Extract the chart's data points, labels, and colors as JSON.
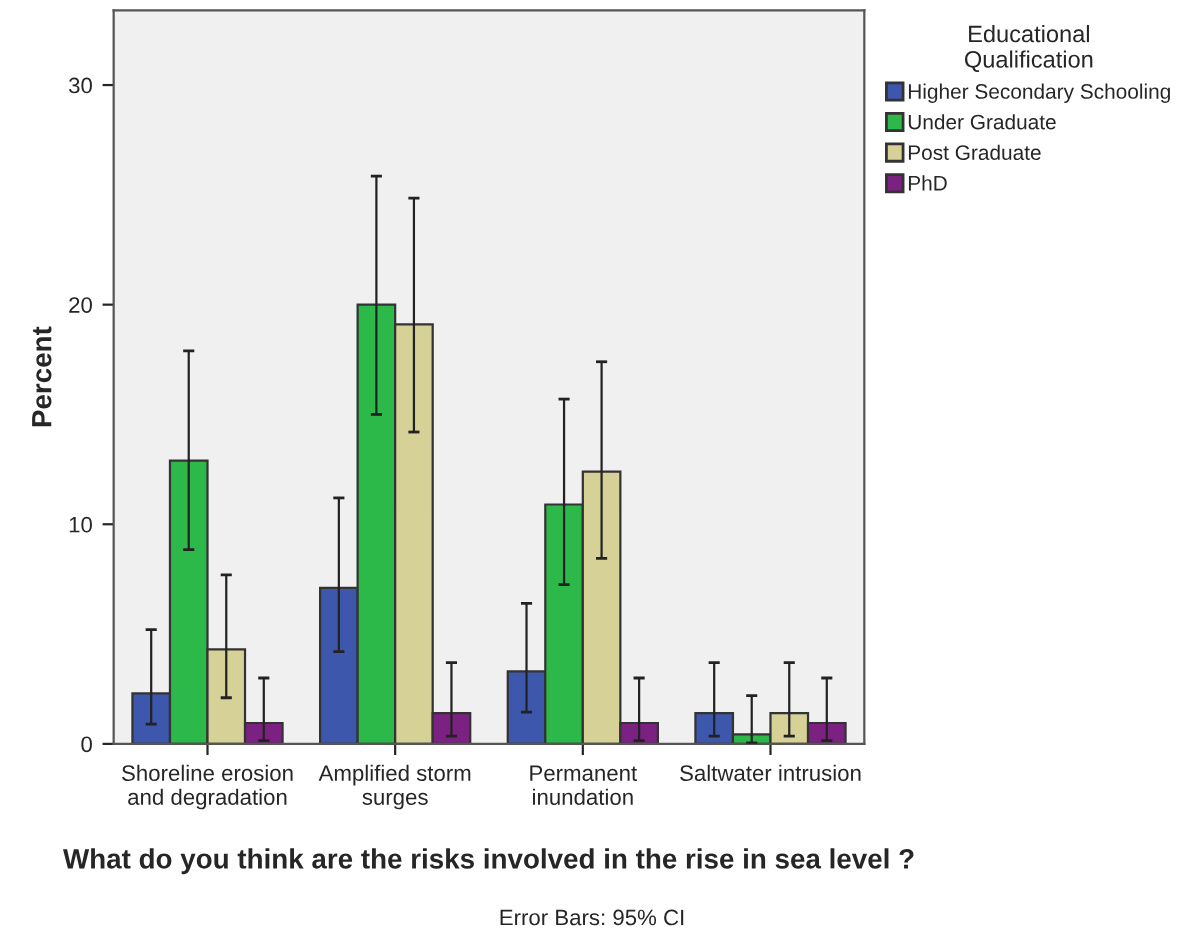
{
  "chart_data": {
    "type": "bar",
    "xlabel": "What do you think are the risks involved in the rise in sea level ?",
    "ylabel": "Percent",
    "legend_title": "Educational\nQualification",
    "legend": "right",
    "grid": false,
    "categories": [
      "Shoreline erosion\nand degradation",
      "Amplified storm\nsurges",
      "Permanent\ninundation",
      "Saltwater intrusion"
    ],
    "ylim": [
      0,
      33.4
    ],
    "yticks": [
      0,
      10,
      20,
      30
    ],
    "series": [
      {
        "name": "Higher Secondary Schooling",
        "color": "#3d57ad",
        "values": [
          2.3,
          7.1,
          3.3,
          1.4
        ],
        "errors": [
          [
            0.9,
            5.2
          ],
          [
            4.2,
            11.2
          ],
          [
            1.45,
            6.4
          ],
          [
            0.35,
            3.7
          ]
        ]
      },
      {
        "name": "Under Graduate",
        "color": "#2db84a",
        "values": [
          12.9,
          20.0,
          10.9,
          0.43
        ],
        "errors": [
          [
            8.85,
            17.9
          ],
          [
            15.0,
            25.85
          ],
          [
            7.25,
            15.7
          ],
          [
            0.05,
            2.2
          ]
        ]
      },
      {
        "name": "Post Graduate",
        "color": "#d6d197",
        "values": [
          4.3,
          19.1,
          12.4,
          1.4
        ],
        "errors": [
          [
            2.1,
            7.7
          ],
          [
            14.2,
            24.85
          ],
          [
            8.45,
            17.4
          ],
          [
            0.35,
            3.7
          ]
        ]
      },
      {
        "name": "PhD",
        "color": "#7b2182",
        "values": [
          0.95,
          1.4,
          0.95,
          0.95
        ],
        "errors": [
          [
            0.15,
            3.0
          ],
          [
            0.35,
            3.7
          ],
          [
            0.15,
            3.0
          ],
          [
            0.15,
            3.0
          ]
        ]
      }
    ],
    "annotations": [
      "Error Bars: 95% CI"
    ]
  }
}
